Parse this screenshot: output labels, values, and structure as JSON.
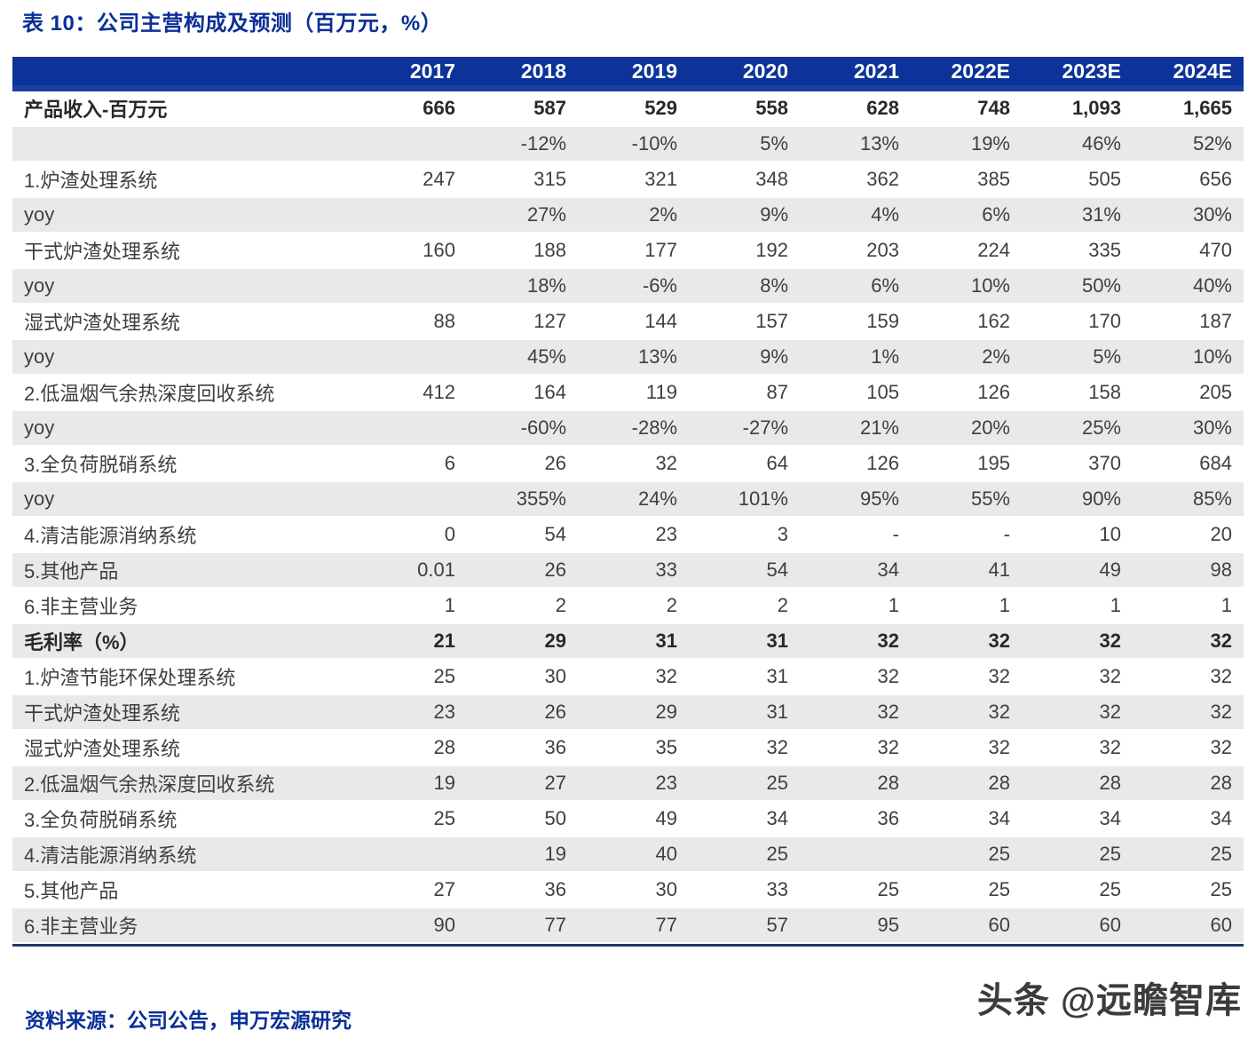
{
  "page": {
    "title": "表 10：公司主营构成及预测（百万元，%）",
    "source": "资料来源：公司公告，申万宏源研究",
    "watermark": "头条 @远瞻智库"
  },
  "theme": {
    "header_bg": "#0d339a",
    "header_strip": "#1a3fa0",
    "accent": "#0b2f96",
    "zebra": "#e9e9e9",
    "text": "#3f3f3f",
    "bold_text": "#282828",
    "bottom_border": "#203a66"
  },
  "table": {
    "columns": [
      "",
      "2017",
      "2018",
      "2019",
      "2020",
      "2021",
      "2022E",
      "2023E",
      "2024E"
    ],
    "rows": [
      {
        "label": "产品收入-百万元",
        "bold": true,
        "values": [
          "666",
          "587",
          "529",
          "558",
          "628",
          "748",
          "1,093",
          "1,665"
        ]
      },
      {
        "label": "",
        "bold": false,
        "values": [
          "",
          "-12%",
          "-10%",
          "5%",
          "13%",
          "19%",
          "46%",
          "52%"
        ]
      },
      {
        "label": "1.炉渣处理系统",
        "bold": false,
        "values": [
          "247",
          "315",
          "321",
          "348",
          "362",
          "385",
          "505",
          "656"
        ]
      },
      {
        "label": "yoy",
        "bold": false,
        "values": [
          "",
          "27%",
          "2%",
          "9%",
          "4%",
          "6%",
          "31%",
          "30%"
        ]
      },
      {
        "label": "干式炉渣处理系统",
        "bold": false,
        "values": [
          "160",
          "188",
          "177",
          "192",
          "203",
          "224",
          "335",
          "470"
        ]
      },
      {
        "label": "yoy",
        "bold": false,
        "values": [
          "",
          "18%",
          "-6%",
          "8%",
          "6%",
          "10%",
          "50%",
          "40%"
        ]
      },
      {
        "label": "湿式炉渣处理系统",
        "bold": false,
        "values": [
          "88",
          "127",
          "144",
          "157",
          "159",
          "162",
          "170",
          "187"
        ]
      },
      {
        "label": "yoy",
        "bold": false,
        "values": [
          "",
          "45%",
          "13%",
          "9%",
          "1%",
          "2%",
          "5%",
          "10%"
        ]
      },
      {
        "label": "2.低温烟气余热深度回收系统",
        "bold": false,
        "values": [
          "412",
          "164",
          "119",
          "87",
          "105",
          "126",
          "158",
          "205"
        ]
      },
      {
        "label": "yoy",
        "bold": false,
        "values": [
          "",
          "-60%",
          "-28%",
          "-27%",
          "21%",
          "20%",
          "25%",
          "30%"
        ]
      },
      {
        "label": "3.全负荷脱硝系统",
        "bold": false,
        "values": [
          "6",
          "26",
          "32",
          "64",
          "126",
          "195",
          "370",
          "684"
        ]
      },
      {
        "label": "yoy",
        "bold": false,
        "values": [
          "",
          "355%",
          "24%",
          "101%",
          "95%",
          "55%",
          "90%",
          "85%"
        ]
      },
      {
        "label": "4.清洁能源消纳系统",
        "bold": false,
        "values": [
          "0",
          "54",
          "23",
          "3",
          "-",
          "-",
          "10",
          "20"
        ]
      },
      {
        "label": "5.其他产品",
        "bold": false,
        "values": [
          "0.01",
          "26",
          "33",
          "54",
          "34",
          "41",
          "49",
          "98"
        ]
      },
      {
        "label": "6.非主营业务",
        "bold": false,
        "values": [
          "1",
          "2",
          "2",
          "2",
          "1",
          "1",
          "1",
          "1"
        ]
      },
      {
        "label": "毛利率（%）",
        "bold": true,
        "values": [
          "21",
          "29",
          "31",
          "31",
          "32",
          "32",
          "32",
          "32"
        ]
      },
      {
        "label": "1.炉渣节能环保处理系统",
        "bold": false,
        "values": [
          "25",
          "30",
          "32",
          "31",
          "32",
          "32",
          "32",
          "32"
        ]
      },
      {
        "label": "干式炉渣处理系统",
        "bold": false,
        "values": [
          "23",
          "26",
          "29",
          "31",
          "32",
          "32",
          "32",
          "32"
        ]
      },
      {
        "label": "湿式炉渣处理系统",
        "bold": false,
        "values": [
          "28",
          "36",
          "35",
          "32",
          "32",
          "32",
          "32",
          "32"
        ]
      },
      {
        "label": "2.低温烟气余热深度回收系统",
        "bold": false,
        "values": [
          "19",
          "27",
          "23",
          "25",
          "28",
          "28",
          "28",
          "28"
        ]
      },
      {
        "label": "3.全负荷脱硝系统",
        "bold": false,
        "values": [
          "25",
          "50",
          "49",
          "34",
          "36",
          "34",
          "34",
          "34"
        ]
      },
      {
        "label": "4.清洁能源消纳系统",
        "bold": false,
        "values": [
          "",
          "19",
          "40",
          "25",
          "",
          "25",
          "25",
          "25"
        ]
      },
      {
        "label": "5.其他产品",
        "bold": false,
        "values": [
          "27",
          "36",
          "30",
          "33",
          "25",
          "25",
          "25",
          "25"
        ]
      },
      {
        "label": "6.非主营业务",
        "bold": false,
        "values": [
          "90",
          "77",
          "77",
          "57",
          "95",
          "60",
          "60",
          "60"
        ]
      }
    ]
  }
}
